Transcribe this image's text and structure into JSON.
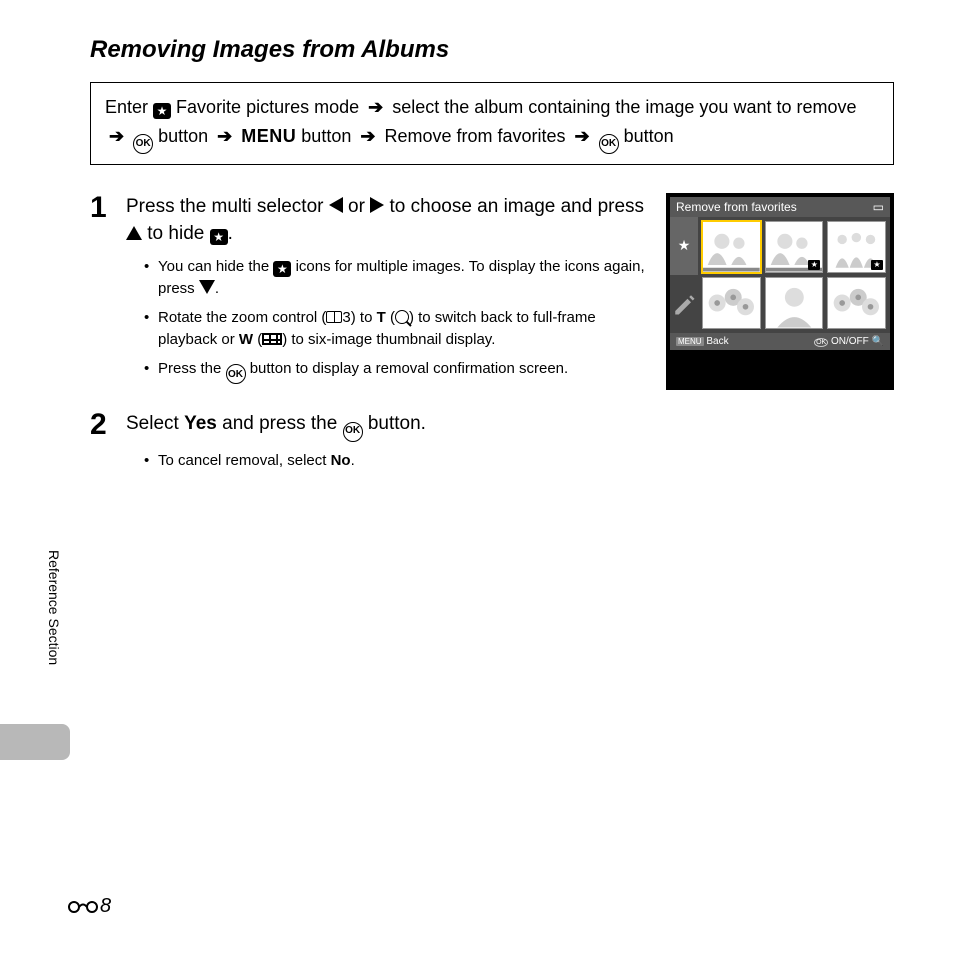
{
  "title": "Removing Images from Albums",
  "nav": {
    "parts": [
      "Enter ",
      "{star}",
      " Favorite pictures mode ",
      "{arrow}",
      " select the album containing the image you want to remove ",
      "{arrow}",
      " ",
      "{ok}",
      " button ",
      "{arrow}",
      " ",
      "{menu}",
      " button ",
      "{arrow}",
      " Remove from favorites ",
      "{arrow}",
      " ",
      "{ok}",
      " button"
    ],
    "menu_label": "MENU"
  },
  "steps": {
    "s1": {
      "num": "1",
      "head_pre": "Press the multi selector ",
      "head_mid1": " or ",
      "head_mid2": " to choose an image and press ",
      "head_mid3": " to hide ",
      "head_post": ".",
      "bullets": [
        {
          "pre": "You can hide the ",
          "post": " icons for multiple images. To display the icons again, press ",
          "end": "."
        },
        {
          "pre": "Rotate the zoom control (",
          "ref": "3",
          "mid1": ") to ",
          "t": "T",
          "mid2": " (",
          "mid3": ") to switch back to full-frame playback or ",
          "w": "W",
          "mid4": " (",
          "mid5": ") to six-image thumbnail display."
        },
        {
          "pre": "Press the ",
          "post": " button to display a removal confirmation screen."
        }
      ]
    },
    "s2": {
      "num": "2",
      "head_pre": "Select ",
      "yes": "Yes",
      "head_mid": " and press the ",
      "head_post": " button.",
      "bullet_pre": "To cancel removal, select ",
      "no": "No",
      "bullet_post": "."
    }
  },
  "lcd": {
    "header": "Remove from favorites",
    "side_star": "★",
    "side_wrench": "🔧",
    "footer_left": "Back",
    "footer_right": "ON/OFF",
    "thumbs": [
      {
        "star": false,
        "sel": true,
        "motif": "people"
      },
      {
        "star": true,
        "sel": false,
        "motif": "people"
      },
      {
        "star": true,
        "sel": false,
        "motif": "group"
      },
      {
        "star": false,
        "sel": false,
        "motif": "flowers"
      },
      {
        "star": false,
        "sel": false,
        "motif": "portrait"
      },
      {
        "star": false,
        "sel": false,
        "motif": "flowers"
      }
    ],
    "colors": {
      "bg": "#000",
      "panel": "#585858",
      "body": "#444",
      "sel": "#ffcc00"
    }
  },
  "sidebar": {
    "label": "Reference Section"
  },
  "page_number": "8"
}
